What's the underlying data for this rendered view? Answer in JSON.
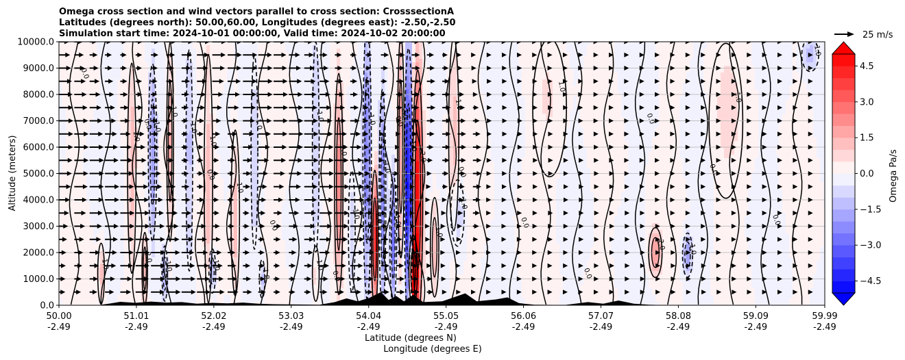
{
  "chart_data": {
    "type": "heatmap",
    "title_lines": [
      "Omega cross section and wind vectors parallel to cross section: CrosssectionA",
      "Latitudes (degrees north): 50.00,60.00, Longitudes (degrees east): -2.50,-2.50",
      "Simulation start time: 2024-10-01 00:00:00, Valid time: 2024-10-02 20:00:00"
    ],
    "ylabel": "Altitude (meters)",
    "xlabel_lat": "Latitude (degrees N)",
    "xlabel_lon": "Longitude (degrees E)",
    "xlim": [
      50.0,
      59.99
    ],
    "ylim": [
      0,
      10000
    ],
    "x_ticks": [
      {
        "lat": "50.00",
        "lon": "-2.49",
        "value": 50.0
      },
      {
        "lat": "51.01",
        "lon": "-2.49",
        "value": 51.01
      },
      {
        "lat": "52.02",
        "lon": "-2.49",
        "value": 52.02
      },
      {
        "lat": "53.03",
        "lon": "-2.49",
        "value": 53.03
      },
      {
        "lat": "54.04",
        "lon": "-2.49",
        "value": 54.04
      },
      {
        "lat": "55.05",
        "lon": "-2.49",
        "value": 55.05
      },
      {
        "lat": "56.06",
        "lon": "-2.49",
        "value": 56.06
      },
      {
        "lat": "57.07",
        "lon": "-2.49",
        "value": 57.07
      },
      {
        "lat": "58.08",
        "lon": "-2.49",
        "value": 58.08
      },
      {
        "lat": "59.09",
        "lon": "-2.49",
        "value": 59.09
      },
      {
        "lat": "59.99",
        "lon": "-2.49",
        "value": 59.99
      }
    ],
    "y_ticks": [
      {
        "value": 0,
        "label": "0.0"
      },
      {
        "value": 1000,
        "label": "1000.0"
      },
      {
        "value": 2000,
        "label": "2000.0"
      },
      {
        "value": 3000,
        "label": "3000.0"
      },
      {
        "value": 4000,
        "label": "4000.0"
      },
      {
        "value": 5000,
        "label": "5000.0"
      },
      {
        "value": 6000,
        "label": "6000.0"
      },
      {
        "value": 7000,
        "label": "7000.0"
      },
      {
        "value": 8000,
        "label": "8000.0"
      },
      {
        "value": 9000,
        "label": "9000.0"
      },
      {
        "value": 10000,
        "label": "10000.0"
      }
    ],
    "grid": "horizontal",
    "colorbar": {
      "label": "Omega Pa/s",
      "vmin": -5.0,
      "vmax": 5.0,
      "step": 0.5,
      "extend": "both",
      "ticks": [
        {
          "value": 4.5,
          "label": "4.5"
        },
        {
          "value": 3.0,
          "label": "3.0"
        },
        {
          "value": 1.5,
          "label": "1.5"
        },
        {
          "value": 0.0,
          "label": "0.0"
        },
        {
          "value": -1.5,
          "label": "−1.5"
        },
        {
          "value": -3.0,
          "label": "−3.0"
        },
        {
          "value": -4.5,
          "label": "−4.5"
        }
      ]
    },
    "quiver_key": {
      "label": "25 m/s",
      "speed": 25
    },
    "contour_labels": [
      "0.0",
      "1.0",
      "-1.0",
      "2.0"
    ],
    "omega_features": [
      {
        "lat": 50.55,
        "alt_center": 1200,
        "half_width": 0.04,
        "half_height": 1100,
        "value": 1.2
      },
      {
        "lat": 50.95,
        "alt_center": 5200,
        "half_width": 0.05,
        "half_height": 3800,
        "value": 1.3
      },
      {
        "lat": 51.12,
        "alt_center": 1400,
        "half_width": 0.03,
        "half_height": 1300,
        "value": 2.0
      },
      {
        "lat": 51.22,
        "alt_center": 5800,
        "half_width": 0.05,
        "half_height": 3200,
        "value": -2.2
      },
      {
        "lat": 51.45,
        "alt_center": 6200,
        "half_width": 0.04,
        "half_height": 3600,
        "value": 1.6
      },
      {
        "lat": 51.38,
        "alt_center": 1200,
        "half_width": 0.03,
        "half_height": 1000,
        "value": -1.8
      },
      {
        "lat": 51.7,
        "alt_center": 5500,
        "half_width": 0.04,
        "half_height": 4000,
        "value": -1.4
      },
      {
        "lat": 51.95,
        "alt_center": 4800,
        "half_width": 0.05,
        "half_height": 4500,
        "value": 1.2
      },
      {
        "lat": 52.0,
        "alt_center": 1300,
        "half_width": 0.04,
        "half_height": 800,
        "value": -2.0
      },
      {
        "lat": 52.3,
        "alt_center": 3500,
        "half_width": 0.05,
        "half_height": 3000,
        "value": 1.4
      },
      {
        "lat": 52.55,
        "alt_center": 5800,
        "half_width": 0.04,
        "half_height": 3500,
        "value": -1.2
      },
      {
        "lat": 52.65,
        "alt_center": 1000,
        "half_width": 0.03,
        "half_height": 700,
        "value": -1.4
      },
      {
        "lat": 53.35,
        "alt_center": 6000,
        "half_width": 0.04,
        "half_height": 3800,
        "value": -1.2
      },
      {
        "lat": 53.35,
        "alt_center": 1200,
        "half_width": 0.04,
        "half_height": 1000,
        "value": 1.2
      },
      {
        "lat": 53.65,
        "alt_center": 4600,
        "half_width": 0.05,
        "half_height": 4000,
        "value": 2.2
      },
      {
        "lat": 53.82,
        "alt_center": 2800,
        "half_width": 0.04,
        "half_height": 2200,
        "value": -1.0
      },
      {
        "lat": 54.02,
        "alt_center": 5500,
        "half_width": 0.05,
        "half_height": 5000,
        "value": -2.5
      },
      {
        "lat": 54.12,
        "alt_center": 2500,
        "half_width": 0.04,
        "half_height": 2500,
        "value": 5.0
      },
      {
        "lat": 54.22,
        "alt_center": 4000,
        "half_width": 0.04,
        "half_height": 4000,
        "value": -2.4
      },
      {
        "lat": 54.36,
        "alt_center": 2500,
        "half_width": 0.04,
        "half_height": 2400,
        "value": -3.0
      },
      {
        "lat": 54.46,
        "alt_center": 6000,
        "half_width": 0.04,
        "half_height": 4000,
        "value": 2.0
      },
      {
        "lat": 54.56,
        "alt_center": 4500,
        "half_width": 0.05,
        "half_height": 5000,
        "value": -5.5
      },
      {
        "lat": 54.68,
        "alt_center": 4200,
        "half_width": 0.06,
        "half_height": 4500,
        "value": 5.0
      },
      {
        "lat": 54.62,
        "alt_center": 1300,
        "half_width": 0.05,
        "half_height": 1300,
        "value": 6.0
      },
      {
        "lat": 54.9,
        "alt_center": 2200,
        "half_width": 0.05,
        "half_height": 1800,
        "value": 1.6
      },
      {
        "lat": 55.15,
        "alt_center": 6500,
        "half_width": 0.06,
        "half_height": 3500,
        "value": 1.2
      },
      {
        "lat": 55.2,
        "alt_center": 3500,
        "half_width": 0.08,
        "half_height": 1200,
        "value": -1.0
      },
      {
        "lat": 57.78,
        "alt_center": 2000,
        "half_width": 0.08,
        "half_height": 900,
        "value": 2.0
      },
      {
        "lat": 58.2,
        "alt_center": 1900,
        "half_width": 0.06,
        "half_height": 800,
        "value": -2.0
      },
      {
        "lat": 56.4,
        "alt_center": 7500,
        "half_width": 0.2,
        "half_height": 2500,
        "value": 0.5
      },
      {
        "lat": 58.7,
        "alt_center": 7000,
        "half_width": 0.2,
        "half_height": 2800,
        "value": 0.6
      },
      {
        "lat": 59.8,
        "alt_center": 9500,
        "half_width": 0.1,
        "half_height": 600,
        "value": -1.4
      }
    ],
    "terrain": [
      {
        "lat": 50.0,
        "alt": 0
      },
      {
        "lat": 50.5,
        "alt": 0
      },
      {
        "lat": 50.65,
        "alt": 60
      },
      {
        "lat": 50.8,
        "alt": 130
      },
      {
        "lat": 51.0,
        "alt": 90
      },
      {
        "lat": 51.2,
        "alt": 140
      },
      {
        "lat": 51.4,
        "alt": 100
      },
      {
        "lat": 51.6,
        "alt": 120
      },
      {
        "lat": 51.8,
        "alt": 60
      },
      {
        "lat": 52.0,
        "alt": 90
      },
      {
        "lat": 52.2,
        "alt": 70
      },
      {
        "lat": 52.4,
        "alt": 100
      },
      {
        "lat": 52.6,
        "alt": 60
      },
      {
        "lat": 52.8,
        "alt": 40
      },
      {
        "lat": 53.1,
        "alt": 30
      },
      {
        "lat": 53.4,
        "alt": 20
      },
      {
        "lat": 53.6,
        "alt": 120
      },
      {
        "lat": 53.75,
        "alt": 260
      },
      {
        "lat": 53.9,
        "alt": 150
      },
      {
        "lat": 54.05,
        "alt": 280
      },
      {
        "lat": 54.2,
        "alt": 500
      },
      {
        "lat": 54.3,
        "alt": 200
      },
      {
        "lat": 54.4,
        "alt": 350
      },
      {
        "lat": 54.5,
        "alt": 150
      },
      {
        "lat": 54.62,
        "alt": 400
      },
      {
        "lat": 54.75,
        "alt": 120
      },
      {
        "lat": 55.0,
        "alt": 150
      },
      {
        "lat": 55.1,
        "alt": 250
      },
      {
        "lat": 55.3,
        "alt": 450
      },
      {
        "lat": 55.45,
        "alt": 150
      },
      {
        "lat": 55.7,
        "alt": 220
      },
      {
        "lat": 55.85,
        "alt": 300
      },
      {
        "lat": 56.0,
        "alt": 80
      },
      {
        "lat": 56.2,
        "alt": 20
      },
      {
        "lat": 56.6,
        "alt": 10
      },
      {
        "lat": 56.9,
        "alt": 120
      },
      {
        "lat": 57.1,
        "alt": 60
      },
      {
        "lat": 57.3,
        "alt": 180
      },
      {
        "lat": 57.5,
        "alt": 60
      },
      {
        "lat": 57.7,
        "alt": 20
      },
      {
        "lat": 58.0,
        "alt": 0
      },
      {
        "lat": 59.99,
        "alt": 0
      }
    ]
  }
}
